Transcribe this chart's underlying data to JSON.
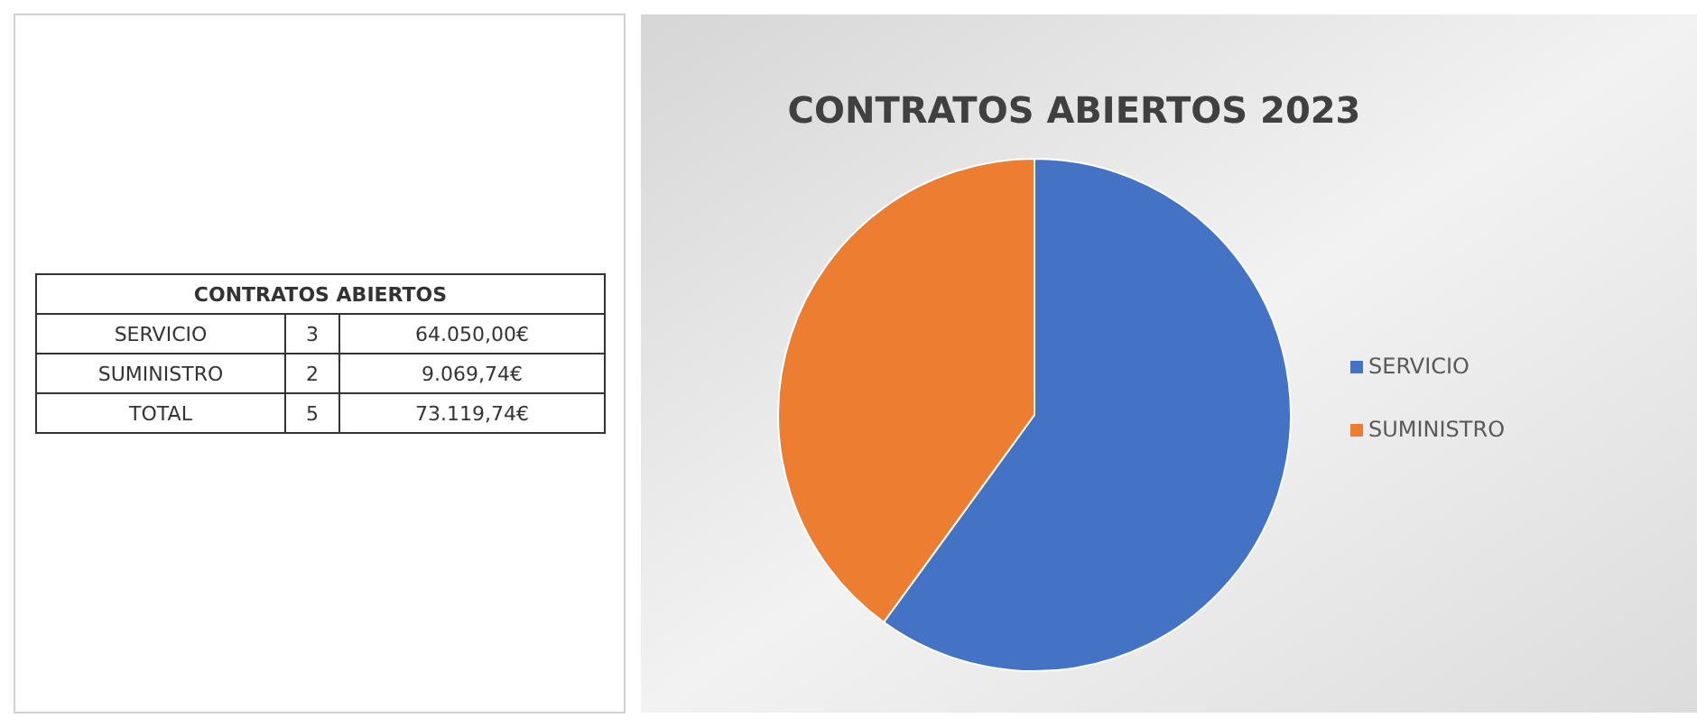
{
  "chart_data": [
    {
      "type": "other",
      "title": "CONTRATOS ABIERTOS",
      "annotations": [
        "SERVICIO",
        "3",
        "64.050,00€",
        "SUMINISTRO",
        "2",
        "9.069,74€",
        "TOTAL",
        "5",
        "73.119,74€"
      ]
    },
    {
      "type": "pie",
      "title": "CONTRATOS ABIERTOS 2023",
      "categories": [
        "SERVICIO",
        "SUMINISTRO"
      ],
      "values": [
        60,
        40
      ],
      "colors": [
        "#4472c4",
        "#ed7d31"
      ],
      "legend": "right"
    }
  ]
}
